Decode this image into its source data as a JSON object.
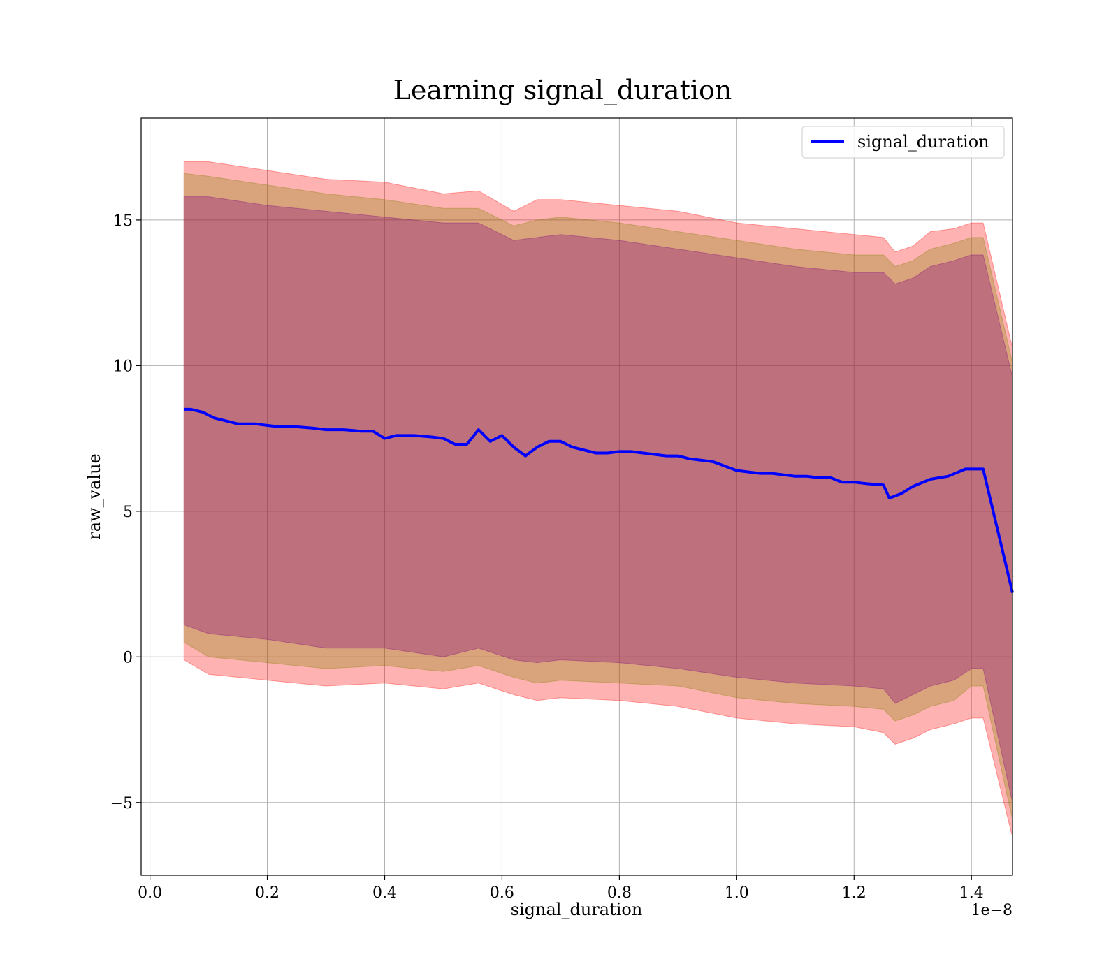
{
  "chart_data": {
    "type": "line",
    "title": "Learning signal_duration",
    "xlabel": "signal_duration",
    "ylabel": "raw_value",
    "x_offset_text": "1e−8",
    "xlim": [
      -0.015,
      1.47
    ],
    "ylim": [
      -7.5,
      18.5
    ],
    "x_ticks": [
      0.0,
      0.2,
      0.4,
      0.6,
      0.8,
      1.0,
      1.2,
      1.4
    ],
    "x_tick_labels": [
      "0.0",
      "0.2",
      "0.4",
      "0.6",
      "0.8",
      "1.0",
      "1.2",
      "1.4"
    ],
    "y_ticks": [
      -5,
      0,
      5,
      10,
      15
    ],
    "y_tick_labels": [
      "−5",
      "0",
      "5",
      "10",
      "15"
    ],
    "grid": true,
    "legend_position": "top-right",
    "series": [
      {
        "name": "signal_duration",
        "color": "#0000ff",
        "x": [
          0.058,
          0.07,
          0.09,
          0.11,
          0.13,
          0.15,
          0.18,
          0.2,
          0.22,
          0.25,
          0.28,
          0.3,
          0.33,
          0.36,
          0.38,
          0.4,
          0.42,
          0.45,
          0.48,
          0.5,
          0.52,
          0.54,
          0.56,
          0.58,
          0.6,
          0.62,
          0.64,
          0.66,
          0.68,
          0.7,
          0.72,
          0.74,
          0.76,
          0.78,
          0.8,
          0.82,
          0.84,
          0.86,
          0.88,
          0.9,
          0.92,
          0.94,
          0.96,
          0.98,
          1.0,
          1.02,
          1.04,
          1.06,
          1.08,
          1.1,
          1.12,
          1.14,
          1.16,
          1.18,
          1.2,
          1.22,
          1.25,
          1.26,
          1.28,
          1.3,
          1.33,
          1.36,
          1.39,
          1.42,
          1.47
        ],
        "y": [
          8.5,
          8.5,
          8.4,
          8.2,
          8.1,
          8.0,
          8.0,
          7.95,
          7.9,
          7.9,
          7.85,
          7.8,
          7.8,
          7.75,
          7.75,
          7.5,
          7.6,
          7.6,
          7.55,
          7.5,
          7.3,
          7.3,
          7.8,
          7.4,
          7.6,
          7.2,
          6.9,
          7.2,
          7.4,
          7.4,
          7.2,
          7.1,
          7.0,
          7.0,
          7.05,
          7.05,
          7.0,
          6.95,
          6.9,
          6.9,
          6.8,
          6.75,
          6.7,
          6.55,
          6.4,
          6.35,
          6.3,
          6.3,
          6.25,
          6.2,
          6.2,
          6.15,
          6.15,
          6.0,
          6.0,
          5.95,
          5.9,
          5.45,
          5.6,
          5.85,
          6.1,
          6.2,
          6.45,
          6.45,
          2.2
        ]
      }
    ],
    "bands": [
      {
        "color": "#ff0000",
        "opacity": 0.3,
        "x": [
          0.058,
          0.1,
          0.2,
          0.3,
          0.4,
          0.5,
          0.56,
          0.62,
          0.66,
          0.7,
          0.8,
          0.9,
          1.0,
          1.1,
          1.2,
          1.25,
          1.27,
          1.3,
          1.33,
          1.37,
          1.4,
          1.42,
          1.47
        ],
        "upper": [
          17.0,
          17.0,
          16.7,
          16.4,
          16.3,
          15.9,
          16.0,
          15.3,
          15.7,
          15.7,
          15.5,
          15.3,
          14.9,
          14.7,
          14.5,
          14.4,
          13.9,
          14.1,
          14.6,
          14.7,
          14.9,
          14.9,
          10.6
        ],
        "lower": [
          -0.1,
          -0.6,
          -0.8,
          -1.0,
          -0.9,
          -1.1,
          -0.9,
          -1.3,
          -1.5,
          -1.4,
          -1.5,
          -1.7,
          -2.1,
          -2.3,
          -2.4,
          -2.6,
          -3.0,
          -2.8,
          -2.5,
          -2.3,
          -2.1,
          -2.1,
          -6.2
        ]
      },
      {
        "color": "#808000",
        "opacity": 0.3,
        "x": [
          0.058,
          0.1,
          0.2,
          0.3,
          0.4,
          0.5,
          0.56,
          0.62,
          0.66,
          0.7,
          0.8,
          0.9,
          1.0,
          1.1,
          1.2,
          1.25,
          1.27,
          1.3,
          1.33,
          1.37,
          1.4,
          1.42,
          1.47
        ],
        "upper": [
          16.6,
          16.5,
          16.2,
          15.9,
          15.7,
          15.4,
          15.4,
          14.8,
          15.0,
          15.1,
          14.9,
          14.6,
          14.3,
          14.0,
          13.8,
          13.8,
          13.4,
          13.6,
          14.0,
          14.2,
          14.4,
          14.4,
          10.1
        ],
        "lower": [
          0.5,
          0.0,
          -0.2,
          -0.4,
          -0.3,
          -0.5,
          -0.3,
          -0.7,
          -0.9,
          -0.8,
          -0.9,
          -1.0,
          -1.4,
          -1.6,
          -1.7,
          -1.8,
          -2.2,
          -2.0,
          -1.7,
          -1.5,
          -1.0,
          -1.0,
          -5.6
        ]
      },
      {
        "color": "#800080",
        "opacity": 0.3,
        "x": [
          0.058,
          0.1,
          0.2,
          0.3,
          0.4,
          0.5,
          0.56,
          0.62,
          0.66,
          0.7,
          0.8,
          0.9,
          1.0,
          1.1,
          1.2,
          1.25,
          1.27,
          1.3,
          1.33,
          1.37,
          1.4,
          1.42,
          1.47
        ],
        "upper": [
          15.8,
          15.8,
          15.5,
          15.3,
          15.1,
          14.9,
          14.9,
          14.3,
          14.4,
          14.5,
          14.3,
          14.0,
          13.7,
          13.4,
          13.2,
          13.2,
          12.8,
          13.0,
          13.4,
          13.6,
          13.8,
          13.8,
          9.6
        ],
        "lower": [
          1.1,
          0.8,
          0.6,
          0.3,
          0.3,
          0.0,
          0.3,
          -0.1,
          -0.2,
          -0.1,
          -0.2,
          -0.4,
          -0.7,
          -0.9,
          -1.0,
          -1.1,
          -1.6,
          -1.3,
          -1.0,
          -0.8,
          -0.4,
          -0.4,
          -5.0
        ]
      }
    ]
  }
}
